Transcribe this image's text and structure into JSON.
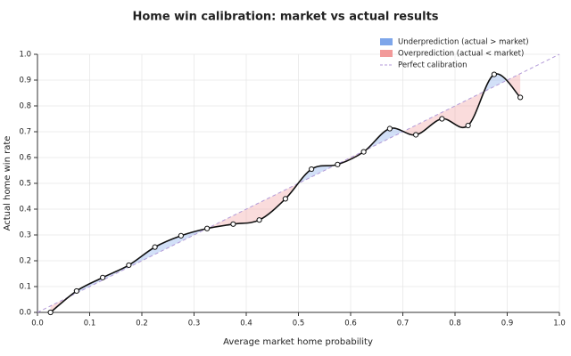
{
  "chart_data": {
    "type": "calibration",
    "title": "Home win calibration: market vs actual results",
    "xlabel": "Average market home probability",
    "ylabel": "Actual home win rate",
    "x": [
      0.025,
      0.075,
      0.125,
      0.175,
      0.225,
      0.275,
      0.325,
      0.375,
      0.425,
      0.475,
      0.525,
      0.575,
      0.625,
      0.675,
      0.725,
      0.775,
      0.825,
      0.875,
      0.925
    ],
    "values": [
      0.0,
      0.083,
      0.135,
      0.183,
      0.253,
      0.297,
      0.325,
      0.342,
      0.358,
      0.44,
      0.555,
      0.573,
      0.622,
      0.712,
      0.688,
      0.75,
      0.724,
      0.922,
      0.833
    ],
    "color": "#111111",
    "fills": [
      {
        "name": "Underprediction (actual > market)",
        "color": "#7ea6ea"
      },
      {
        "name": "Overprediction (actual < market)",
        "color": "#f29a9a"
      }
    ],
    "reference": {
      "name": "Perfect calibration",
      "color": "#b39ad8"
    },
    "xlim": [
      0,
      1
    ],
    "ylim": [
      0,
      1
    ],
    "xticks": [
      {
        "value": 0,
        "label": "0.0"
      },
      0.1,
      0.2,
      0.3,
      0.4,
      0.5,
      0.6,
      0.7,
      0.8,
      0.9,
      {
        "value": 1,
        "label": "1.0"
      }
    ],
    "yticks": [
      {
        "value": 0,
        "label": "0.0"
      },
      0.1,
      0.2,
      0.3,
      0.4,
      0.5,
      0.6,
      0.7,
      0.8,
      0.9,
      {
        "value": 1,
        "label": "1.0"
      }
    ],
    "grid": true
  }
}
